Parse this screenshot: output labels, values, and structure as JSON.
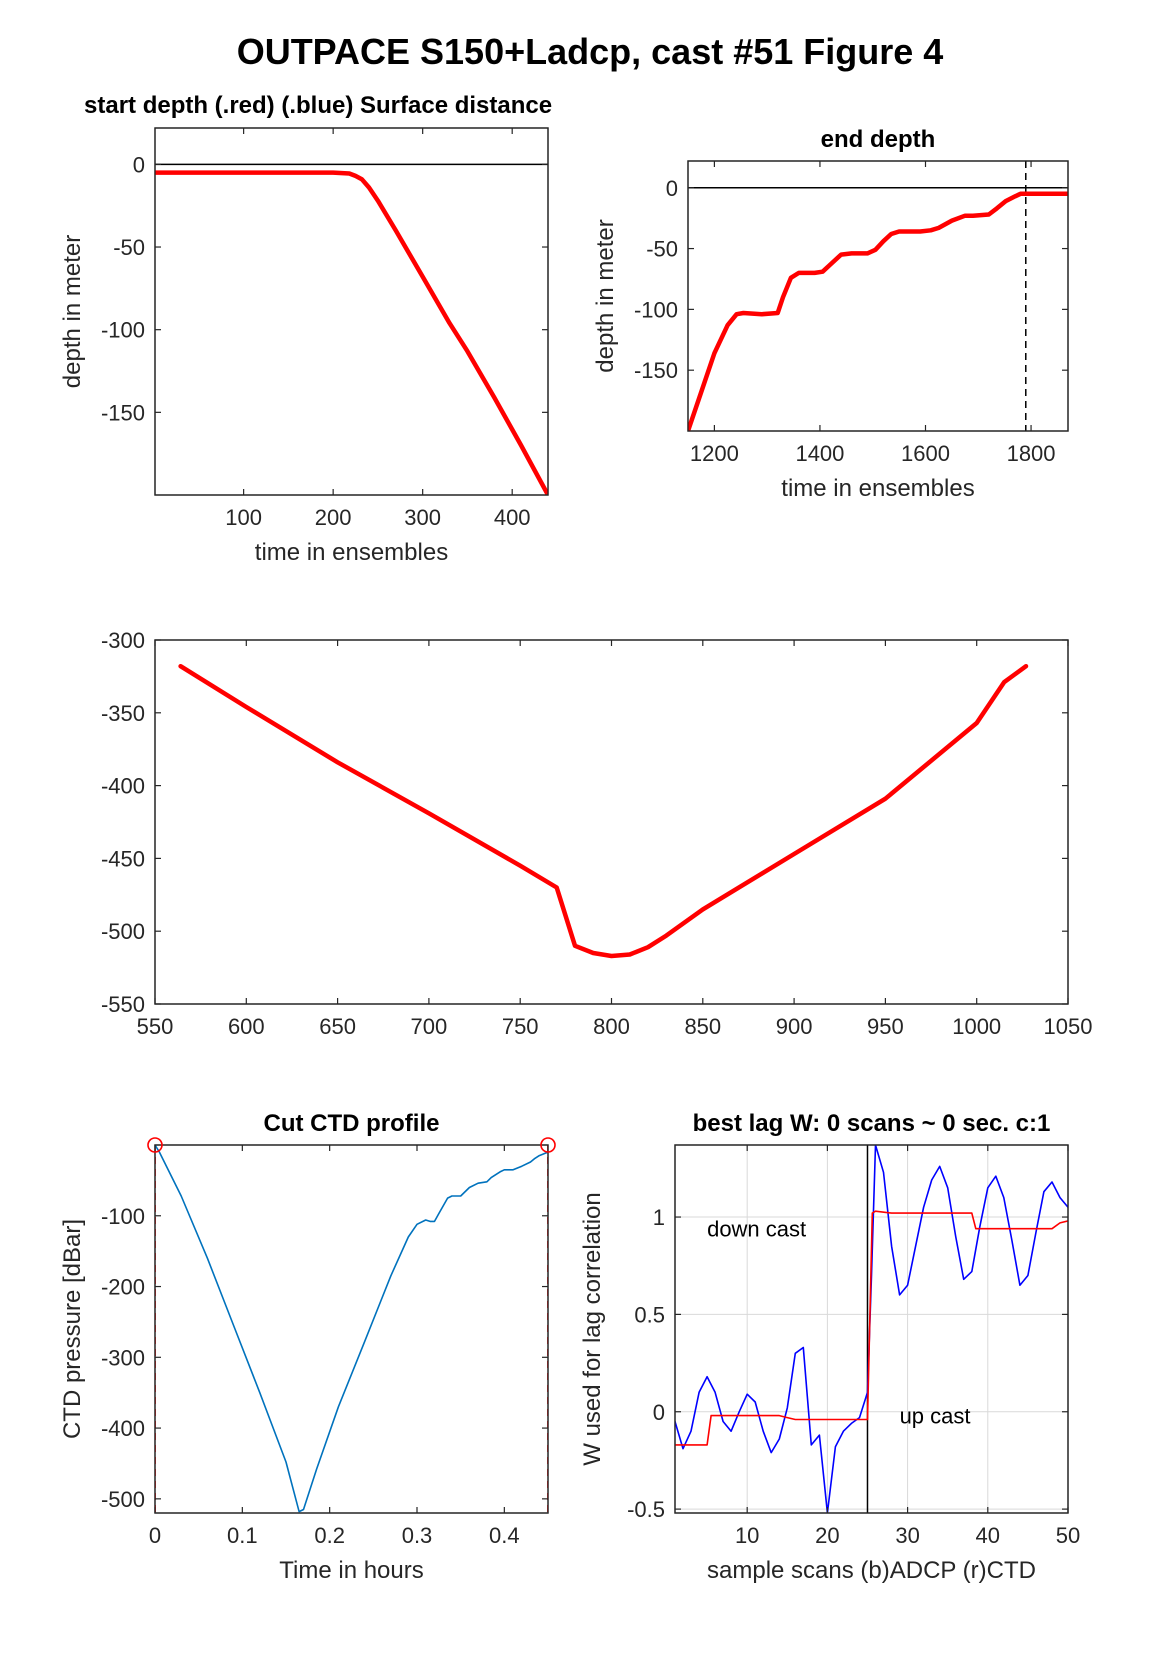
{
  "figure_title": "OUTPACE S150+Ladcp, cast #51   Figure 4",
  "chart_data": [
    {
      "id": "start",
      "type": "line",
      "title": "start depth (.red) (.blue) Surface distance",
      "xlabel": "time in ensembles",
      "ylabel": "depth in meter",
      "xlim": [
        1,
        440
      ],
      "ylim": [
        -200,
        22
      ],
      "xticks": [
        100,
        200,
        300,
        400
      ],
      "yticks": [
        0,
        -50,
        -100,
        -150
      ],
      "grid": false,
      "reference_lines": [
        {
          "orientation": "horizontal",
          "value": 0,
          "style": "solid",
          "color": "#000000"
        }
      ],
      "series": [
        {
          "color": "#ff0000",
          "width": 4.5,
          "x": [
            1,
            50,
            100,
            150,
            200,
            218,
            225,
            232,
            240,
            250,
            270,
            300,
            330,
            350,
            380,
            410,
            440
          ],
          "y": [
            -5,
            -5,
            -5,
            -5,
            -5,
            -5.5,
            -7,
            -9,
            -14,
            -22,
            -40,
            -68,
            -96,
            -113,
            -141,
            -170,
            -200
          ]
        }
      ]
    },
    {
      "id": "end",
      "type": "line",
      "title": "end depth",
      "xlabel": "time in ensembles",
      "ylabel": "depth in meter",
      "xlim": [
        1150,
        1870
      ],
      "ylim": [
        -200,
        22
      ],
      "xticks": [
        1200,
        1400,
        1600,
        1800
      ],
      "yticks": [
        0,
        -50,
        -100,
        -150
      ],
      "grid": false,
      "reference_lines": [
        {
          "orientation": "horizontal",
          "value": 0,
          "style": "solid",
          "color": "#000000"
        },
        {
          "orientation": "vertical",
          "value": 1790,
          "style": "dashed",
          "color": "#000000"
        }
      ],
      "series": [
        {
          "color": "#ff0000",
          "width": 4.5,
          "x": [
            1150,
            1175,
            1200,
            1225,
            1242,
            1255,
            1290,
            1320,
            1330,
            1345,
            1360,
            1390,
            1405,
            1420,
            1440,
            1460,
            1490,
            1505,
            1520,
            1535,
            1550,
            1590,
            1610,
            1625,
            1650,
            1675,
            1690,
            1720,
            1735,
            1752,
            1770,
            1780,
            1790,
            1800,
            1870
          ],
          "y": [
            -200,
            -168,
            -136,
            -113,
            -104,
            -103,
            -104,
            -103,
            -90,
            -74,
            -70,
            -70,
            -69,
            -63,
            -55,
            -54,
            -54,
            -51,
            -44,
            -38,
            -36,
            -36,
            -35,
            -33,
            -27,
            -23,
            -23,
            -22,
            -17,
            -11,
            -7,
            -5,
            -5,
            -5,
            -5
          ]
        }
      ]
    },
    {
      "id": "middle",
      "type": "line",
      "title": "",
      "xlabel": "",
      "ylabel": "",
      "xlim": [
        550,
        1050
      ],
      "ylim": [
        -550,
        -300
      ],
      "xticks": [
        550,
        600,
        650,
        700,
        750,
        800,
        850,
        900,
        950,
        1000,
        1050
      ],
      "yticks": [
        -300,
        -350,
        -400,
        -450,
        -500,
        -550
      ],
      "grid": false,
      "series": [
        {
          "color": "#ff0000",
          "width": 4.5,
          "x": [
            564,
            600,
            650,
            700,
            750,
            770,
            780,
            790,
            800,
            810,
            820,
            830,
            850,
            900,
            950,
            1000,
            1015,
            1027
          ],
          "y": [
            -318,
            -346,
            -384,
            -419,
            -455,
            -470,
            -510,
            -515,
            -517,
            -516,
            -511,
            -503,
            -485,
            -447,
            -409,
            -357,
            -329,
            -318
          ]
        }
      ]
    },
    {
      "id": "ctd",
      "type": "line",
      "title": "Cut CTD profile",
      "xlabel": "Time in hours",
      "ylabel": "CTD pressure [dBar]",
      "xlim": [
        0,
        0.45
      ],
      "ylim": [
        -520,
        0
      ],
      "xticks": [
        0,
        0.1,
        0.2,
        0.3,
        0.4
      ],
      "yticks": [
        -100,
        -200,
        -300,
        -400,
        -500
      ],
      "grid": false,
      "reference_lines": [
        {
          "orientation": "vertical",
          "value": 0,
          "style": "dashed",
          "color": "#ff0000"
        },
        {
          "orientation": "vertical",
          "value": 0.45,
          "style": "dashed",
          "color": "#ff0000"
        }
      ],
      "markers": [
        {
          "x": 0,
          "y": 0,
          "shape": "circle",
          "color": "#ff0000"
        },
        {
          "x": 0.45,
          "y": 0,
          "shape": "circle",
          "color": "#ff0000"
        }
      ],
      "series": [
        {
          "color": "#0072bd",
          "width": 1.6,
          "x": [
            0,
            0.005,
            0.03,
            0.06,
            0.09,
            0.12,
            0.15,
            0.165,
            0.17,
            0.185,
            0.21,
            0.24,
            0.27,
            0.29,
            0.3,
            0.31,
            0.315,
            0.32,
            0.325,
            0.335,
            0.34,
            0.35,
            0.36,
            0.37,
            0.38,
            0.385,
            0.395,
            0.4,
            0.41,
            0.42,
            0.43,
            0.435,
            0.44,
            0.45
          ],
          "y": [
            0,
            -10,
            -72,
            -160,
            -255,
            -350,
            -448,
            -518,
            -515,
            -458,
            -370,
            -278,
            -185,
            -130,
            -112,
            -106,
            -108,
            -108,
            -97,
            -75,
            -72,
            -72,
            -60,
            -54,
            -52,
            -46,
            -38,
            -35,
            -35,
            -30,
            -24,
            -19,
            -15,
            -10
          ]
        }
      ]
    },
    {
      "id": "lag",
      "type": "line",
      "title": "best lag W: 0 scans ~ 0 sec.  c:1",
      "xlabel": "sample scans (b)ADCP (r)CTD",
      "ylabel": "W used for lag correlation",
      "xlim": [
        1,
        50
      ],
      "ylim": [
        -0.52,
        1.37
      ],
      "xticks": [
        10,
        20,
        30,
        40,
        50
      ],
      "yticks": [
        1,
        0.5,
        0,
        -0.5
      ],
      "grid": true,
      "reference_lines": [
        {
          "orientation": "vertical",
          "value": 25,
          "style": "solid",
          "color": "#000000"
        }
      ],
      "annotations": [
        {
          "text": "down cast",
          "x": 5,
          "y": 0.9
        },
        {
          "text": "up cast",
          "x": 29,
          "y": -0.06
        }
      ],
      "series": [
        {
          "color": "#0000ff",
          "width": 1.6,
          "x": [
            1,
            2,
            3,
            4,
            5,
            6,
            7,
            8,
            9,
            10,
            11,
            12,
            13,
            14,
            15,
            16,
            17,
            18,
            19,
            20,
            21,
            22,
            23,
            24,
            25,
            25.5,
            26,
            27,
            28,
            29,
            30,
            31,
            32,
            33,
            34,
            35,
            36,
            37,
            38,
            39,
            40,
            41,
            42,
            43,
            44,
            45,
            46,
            47,
            48,
            49,
            50
          ],
          "y": [
            -0.05,
            -0.19,
            -0.1,
            0.1,
            0.18,
            0.1,
            -0.05,
            -0.1,
            0,
            0.09,
            0.05,
            -0.1,
            -0.21,
            -0.14,
            0.02,
            0.3,
            0.33,
            -0.17,
            -0.12,
            -0.52,
            -0.18,
            -0.1,
            -0.06,
            -0.03,
            0.1,
            0.7,
            1.37,
            1.23,
            0.85,
            0.6,
            0.65,
            0.85,
            1.05,
            1.19,
            1.26,
            1.15,
            0.9,
            0.68,
            0.72,
            0.95,
            1.15,
            1.21,
            1.1,
            0.88,
            0.65,
            0.7,
            0.92,
            1.13,
            1.18,
            1.1,
            1.05
          ]
        },
        {
          "color": "#ff0000",
          "width": 1.6,
          "x": [
            1,
            2,
            3,
            4,
            5,
            5.5,
            6,
            7,
            10,
            14,
            15,
            16,
            20,
            24,
            25,
            25.6,
            26,
            28,
            32,
            38,
            38.5,
            40,
            45,
            48,
            49,
            50
          ],
          "y": [
            -0.17,
            -0.17,
            -0.17,
            -0.17,
            -0.17,
            -0.02,
            -0.02,
            -0.02,
            -0.02,
            -0.02,
            -0.03,
            -0.04,
            -0.04,
            -0.04,
            -0.04,
            1.02,
            1.03,
            1.02,
            1.02,
            1.02,
            0.94,
            0.94,
            0.94,
            0.94,
            0.97,
            0.98
          ]
        }
      ]
    }
  ]
}
